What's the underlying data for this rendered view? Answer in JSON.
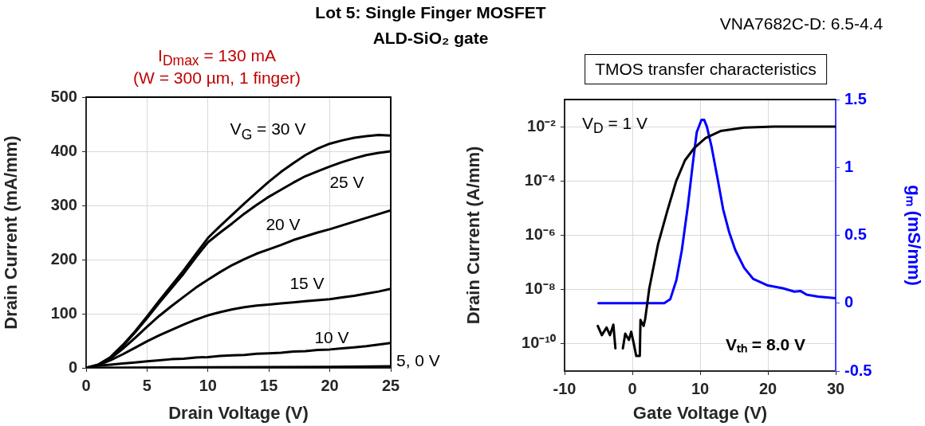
{
  "chart_data": [
    {
      "type": "line",
      "title": "I$_{Dmax}$ = 130 mA",
      "subtitle": "(W = 300 µm, 1 finger)",
      "xlabel": "Drain Voltage (V)",
      "ylabel": "Drain Current (mA/mm)",
      "x": [
        0,
        1,
        2,
        3,
        4,
        5,
        6,
        7,
        8,
        9,
        10,
        11,
        12,
        13,
        14,
        15,
        16,
        17,
        18,
        19,
        20,
        21,
        22,
        23,
        24,
        25
      ],
      "series": [
        {
          "color": "#000000",
          "values": [
            0,
            6,
            20,
            42,
            67,
            95,
            124,
            152,
            180,
            210,
            240,
            262,
            283,
            304,
            324,
            344,
            362,
            378,
            393,
            405,
            414,
            420,
            425,
            428,
            430,
            429
          ]
        },
        {
          "color": "#000000",
          "values": [
            0,
            6,
            19,
            40,
            65,
            92,
            120,
            147,
            174,
            204,
            232,
            250,
            267,
            285,
            301,
            316,
            329,
            342,
            354,
            363,
            372,
            380,
            387,
            393,
            397,
            400
          ]
        },
        {
          "color": "#000000",
          "values": [
            0,
            5,
            17,
            35,
            55,
            76,
            96,
            114,
            131,
            148,
            163,
            177,
            190,
            201,
            211,
            219,
            227,
            236,
            243,
            250,
            256,
            263,
            270,
            277,
            284,
            291
          ]
        },
        {
          "color": "#000000",
          "values": [
            0,
            5,
            14,
            25,
            37,
            49,
            60,
            70,
            80,
            89,
            97,
            103,
            108,
            112,
            115,
            117,
            119,
            121,
            123,
            125,
            127,
            130,
            133,
            137,
            141,
            146
          ]
        },
        {
          "color": "#000000",
          "values": [
            0,
            4,
            6,
            8,
            10,
            12,
            14,
            16,
            17,
            19,
            20,
            22,
            23,
            24,
            26,
            27,
            28,
            30,
            31,
            33,
            34,
            36,
            38,
            40,
            43,
            46
          ]
        },
        {
          "color": "#000000",
          "x": [
            0,
            10,
            20,
            25
          ],
          "values": [
            0,
            1,
            2,
            3
          ]
        }
      ],
      "xlim": [
        0,
        25
      ],
      "xticks": [
        0,
        5,
        10,
        15,
        20,
        25
      ],
      "ylim": [
        0,
        500
      ],
      "yticks": [
        0,
        100,
        200,
        300,
        400,
        500
      ],
      "grid": true,
      "marker": "none",
      "annotations": [
        "Lot 5: Single Finger MOSFET",
        "ALD-SiO₂ gate",
        "V$_{G}$ = 30 V",
        "25 V",
        "20 V",
        "15 V",
        "10 V",
        "5, 0 V"
      ]
    },
    {
      "type": "line",
      "title": "TMOS transfer characteristics",
      "xlabel": "Gate Voltage (V)",
      "ylabel": "Drain Current (A/mm)",
      "y2label": "gₘ (mS/mm)",
      "series": [
        {
          "color": "#000000",
          "axis": "y",
          "x": [
            -5.1,
            -4.5,
            -3.8,
            -3.3,
            -2.8,
            -2.5,
            -2.0,
            -1.4,
            -1.05,
            -0.5,
            -0.17,
            0.26,
            0.57,
            1.1,
            1.2,
            1.66,
            1.9,
            2.5,
            3.8,
            5.15,
            6.46,
            7.77,
            9.1,
            10.8,
            13,
            16.5,
            20.9,
            30
          ],
          "values": [
            4.6e-10,
            2.1e-10,
            4e-10,
            2.1e-10,
            5.1e-10,
            6.9e-11,
            null,
            6.9e-11,
            2.4e-10,
            1.4e-10,
            2.8e-10,
            8.9e-11,
            3.6e-11,
            3.6e-11,
            7.6e-10,
            4.6e-10,
            8.5e-10,
            1.1e-08,
            4.8e-07,
            7.8e-06,
            9.8e-05,
            0.00058,
            0.0016,
            0.0038,
            0.0069,
            0.0093,
            0.01,
            0.01
          ]
        },
        {
          "color": "#0000ff",
          "axis": "y2",
          "x": [
            -5,
            4.7,
            5.6,
            6.5,
            7.3,
            8.2,
            8.9,
            9.5,
            10.2,
            10.6,
            11.0,
            11.7,
            12.6,
            13.4,
            14.3,
            15.2,
            16.5,
            17.8,
            20,
            22.2,
            23.9,
            24.8,
            25.7,
            27.4,
            30
          ],
          "values": [
            0,
            0,
            0.03,
            0.17,
            0.39,
            0.72,
            1.02,
            1.26,
            1.35,
            1.35,
            1.3,
            1.15,
            0.91,
            0.69,
            0.52,
            0.39,
            0.26,
            0.18,
            0.13,
            0.11,
            0.085,
            0.09,
            0.063,
            0.048,
            0.037
          ]
        }
      ],
      "xlim": [
        -10,
        30
      ],
      "xticks": [
        -10,
        0,
        10,
        20,
        30
      ],
      "log": "y",
      "ylim": [
        1e-11,
        0.1
      ],
      "yticks": [
        {
          "value": 1e-10,
          "label": "10⁻¹⁰"
        },
        {
          "value": 1e-08,
          "label": "10⁻⁸"
        },
        {
          "value": 1e-06,
          "label": "10⁻⁶"
        },
        {
          "value": 0.0001,
          "label": "10⁻⁴"
        },
        {
          "value": 0.01,
          "label": "10⁻²"
        }
      ],
      "y2lim": [
        -0.5,
        1.5
      ],
      "y2ticks": [
        -0.5,
        0,
        0.5,
        1,
        1.5
      ],
      "grid": true,
      "marker": "none",
      "annotations": [
        "VNA7682C-D: 6.5-4.4",
        "V$_{D}$ = 1 V",
        "Vₜₕ = 8.0 V"
      ]
    }
  ]
}
